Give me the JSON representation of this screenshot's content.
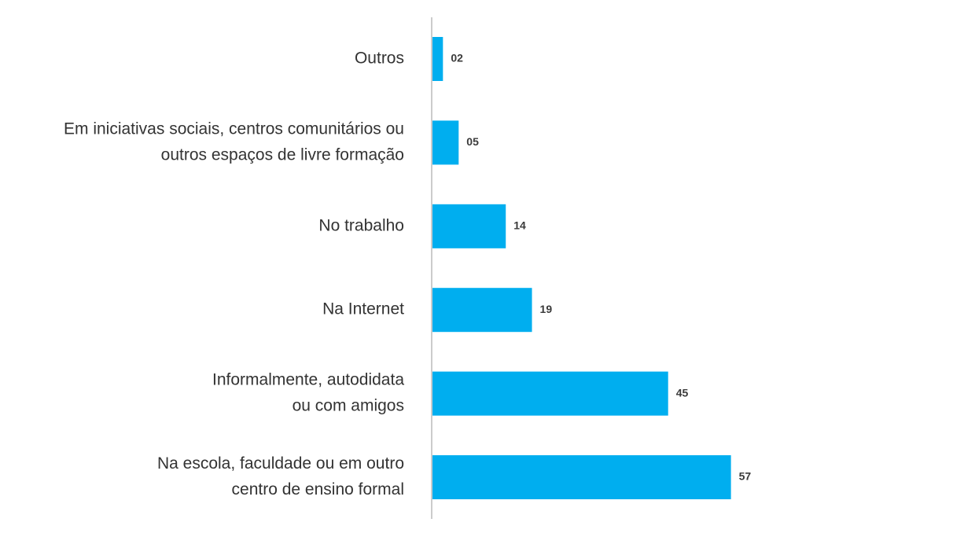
{
  "chart_data": {
    "type": "bar",
    "orientation": "horizontal",
    "categories": [
      [
        "Outros"
      ],
      [
        "Em iniciativas sociais, centros comunitários ou",
        "outros espaços de livre formação"
      ],
      [
        "No trabalho"
      ],
      [
        "Na Internet"
      ],
      [
        "Informalmente, autodidata",
        "ou com amigos"
      ],
      [
        "Na escola, faculdade ou em outro",
        "centro de ensino formal"
      ]
    ],
    "values": [
      2,
      5,
      14,
      19,
      45,
      57
    ],
    "value_labels": [
      "02",
      "05",
      "14",
      "19",
      "45",
      "57"
    ],
    "title": "",
    "xlabel": "",
    "ylabel": "",
    "bar_color": "#00AEEF",
    "axis_color": "#BBBBBB",
    "grid": false,
    "legend": "none"
  }
}
